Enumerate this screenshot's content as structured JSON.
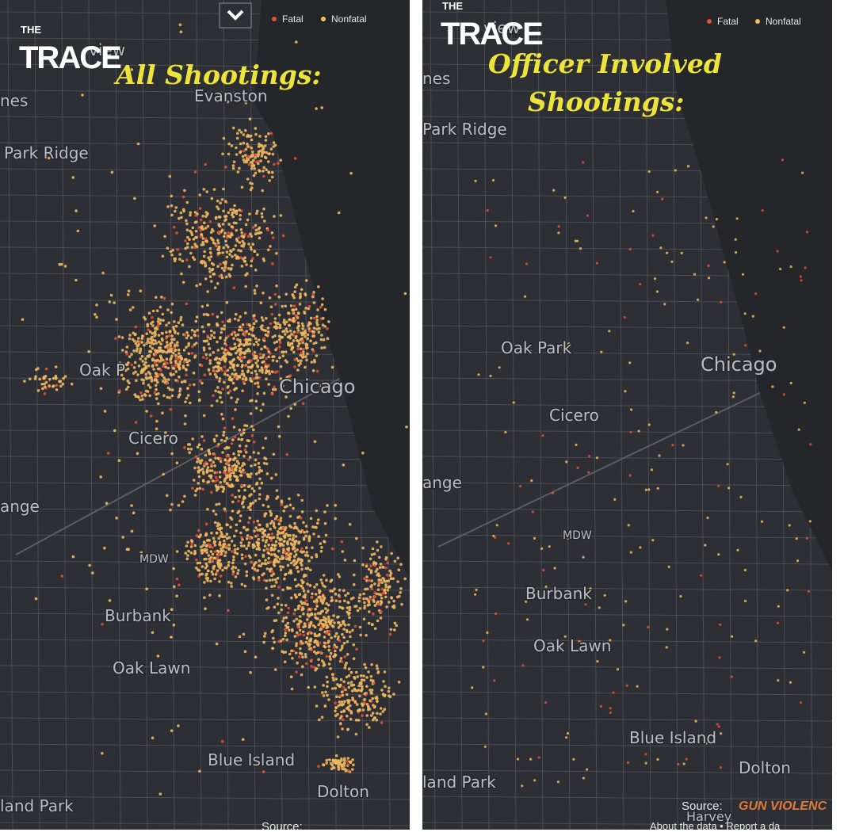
{
  "panels": [
    {
      "logo": {
        "top": "THE",
        "main": "TRACE"
      },
      "title": [
        "All Shootings:"
      ],
      "legend": {
        "fatal": "Fatal",
        "nonfatal": "Nonfatal"
      },
      "places": [
        "view",
        "nes",
        "Evanston",
        "Park Ridge",
        "Oak P",
        "Chicago",
        "Cicero",
        "ange",
        "MDW",
        "Burbank",
        "Oak Lawn",
        "Blue Island",
        "Dolton",
        "land Park"
      ],
      "source": "Source:"
    },
    {
      "logo": {
        "top": "THE",
        "main": "TRACE"
      },
      "title": [
        "Officer Involved",
        "Shootings:"
      ],
      "legend": {
        "fatal": "Fatal",
        "nonfatal": "Nonfatal"
      },
      "places": [
        "view",
        "nes",
        "Park Ridge",
        "Oak Park",
        "Chicago",
        "Cicero",
        "ange",
        "MDW",
        "Burbank",
        "Oak Lawn",
        "Blue Island",
        "Dolton",
        "land Park",
        "Harvey"
      ],
      "source": "Source:",
      "brand": "GUN VIOLENC",
      "footer": "About the data • Report a da"
    }
  ]
}
